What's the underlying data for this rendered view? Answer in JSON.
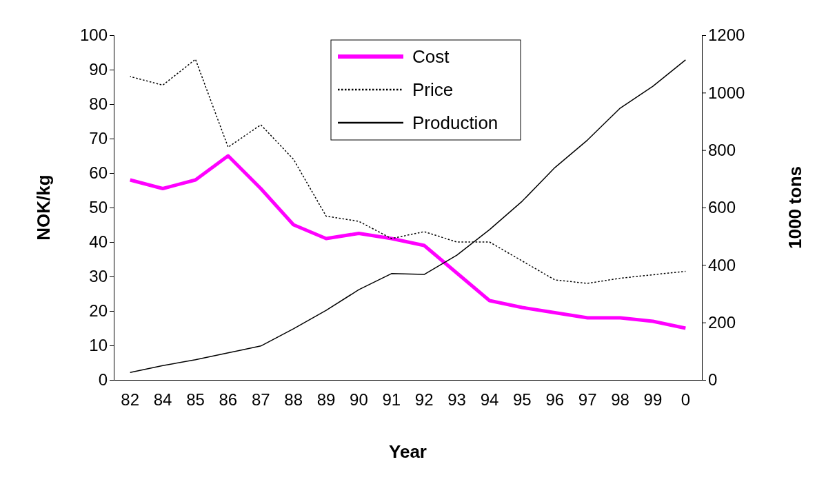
{
  "chart_data": {
    "type": "line",
    "xlabel": "Year",
    "ylabel": "NOK/kg",
    "y2label": "1000 tons",
    "categories": [
      "82",
      "84",
      "85",
      "86",
      "87",
      "88",
      "89",
      "90",
      "91",
      "92",
      "93",
      "94",
      "95",
      "96",
      "97",
      "98",
      "99",
      "0"
    ],
    "ylim": [
      0,
      100
    ],
    "yticks": [
      0,
      10,
      20,
      30,
      40,
      50,
      60,
      70,
      80,
      90,
      100
    ],
    "y2lim": [
      0,
      1200
    ],
    "y2ticks": [
      0,
      200,
      400,
      600,
      800,
      1000,
      1200
    ],
    "legend": "top",
    "grid": false,
    "series": [
      {
        "name": "Cost",
        "color": "#ff00ff",
        "line_style": "solid",
        "values": [
          58,
          55.5,
          58,
          65,
          55.5,
          45,
          41,
          42.5,
          41,
          39,
          31,
          23,
          21,
          19.5,
          18,
          18,
          17,
          15
        ]
      },
      {
        "name": "Price",
        "color": "#000000",
        "line_style": "dotted",
        "values": [
          88,
          85.5,
          93,
          67.5,
          74,
          64,
          47.5,
          46,
          41,
          43,
          40,
          40,
          34.5,
          29,
          28,
          29.5,
          30.5,
          31.5
        ]
      },
      {
        "name": "Production",
        "color": "#000000",
        "line_style": "solid",
        "axis": "y2",
        "values": [
          26,
          50,
          70,
          94,
          118,
          178,
          242,
          314,
          370,
          367,
          434,
          523,
          622,
          739,
          835,
          946,
          1022,
          1114
        ]
      }
    ]
  }
}
